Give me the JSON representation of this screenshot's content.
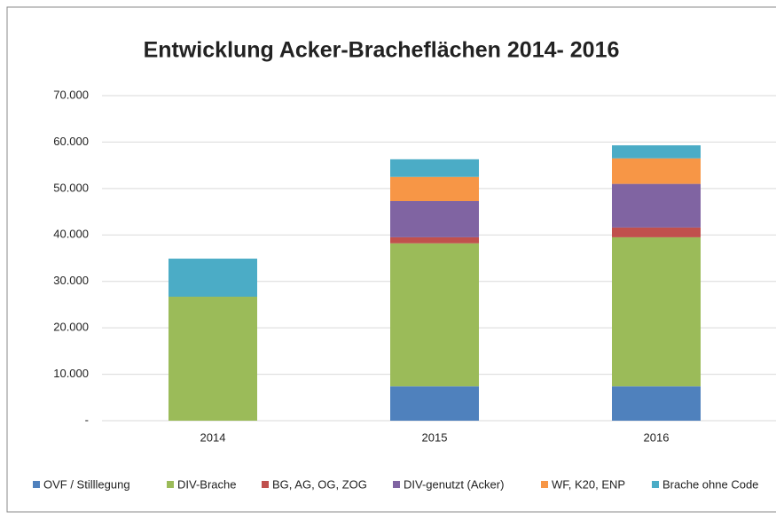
{
  "chart_data": {
    "type": "stacked_bar",
    "title": "Entwicklung Acker-Bracheflächen 2014- 2016",
    "categories": [
      "2014",
      "2015",
      "2016"
    ],
    "series": [
      {
        "name": "OVF / Stilllegung",
        "color": "#4f81bd",
        "values": [
          0,
          7400,
          7400
        ]
      },
      {
        "name": "DIV-Brache",
        "color": "#9bbb59",
        "values": [
          26700,
          30800,
          32100
        ]
      },
      {
        "name": "BG, AG, OG, ZOG",
        "color": "#c0504d",
        "values": [
          0,
          1300,
          2100
        ]
      },
      {
        "name": "DIV-genutzt (Acker)",
        "color": "#8064a2",
        "values": [
          0,
          7800,
          9400
        ]
      },
      {
        "name": "WF, K20, ENP",
        "color": "#f79646",
        "values": [
          0,
          5200,
          5500
        ]
      },
      {
        "name": "Brache ohne Code",
        "color": "#4bacc6",
        "values": [
          8200,
          3800,
          2800
        ]
      }
    ],
    "ylim": [
      0,
      70000
    ],
    "yticks": [
      {
        "value": 0,
        "label": "-"
      },
      {
        "value": 10000,
        "label": "10.000"
      },
      {
        "value": 20000,
        "label": "20.000"
      },
      {
        "value": 30000,
        "label": "30.000"
      },
      {
        "value": 40000,
        "label": "40.000"
      },
      {
        "value": 50000,
        "label": "50.000"
      },
      {
        "value": 60000,
        "label": "60.000"
      },
      {
        "value": 70000,
        "label": "70.000"
      }
    ],
    "grid": true,
    "legend": "bottom"
  }
}
